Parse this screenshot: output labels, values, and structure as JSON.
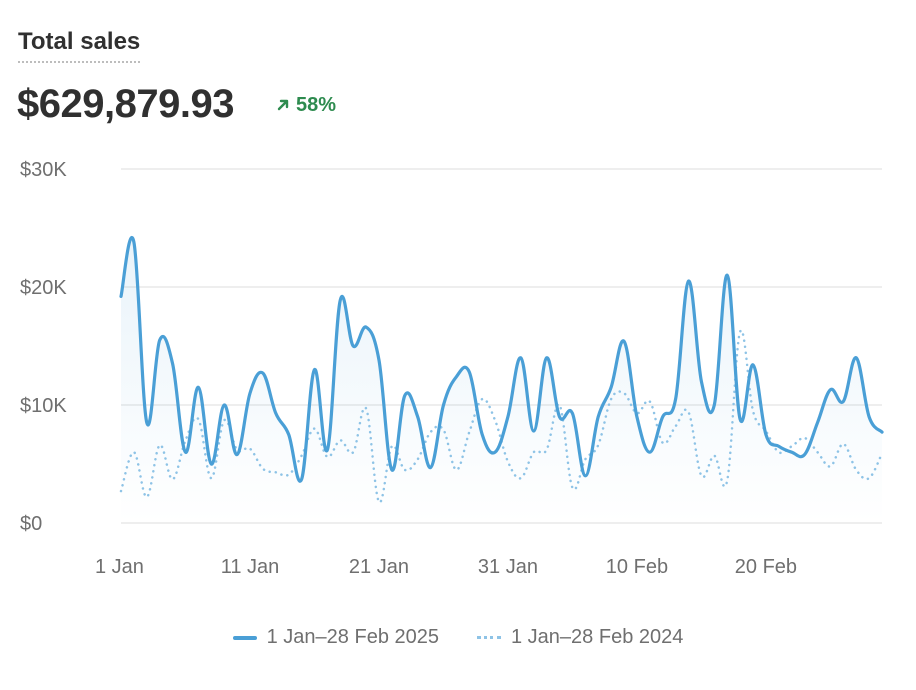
{
  "header": {
    "title": "Total sales",
    "total": "$629,879.93",
    "change": "58%",
    "change_icon": "arrow-up-right-icon"
  },
  "colors": {
    "current": "#4a9fd6",
    "previous": "#8ec3e6",
    "positive": "#2e8b4f",
    "grid": "#e8e8e8"
  },
  "chart_data": {
    "type": "line",
    "title": "Total sales",
    "ylim": [
      0,
      30000
    ],
    "y_ticks": [
      {
        "value": 0,
        "label": "$0"
      },
      {
        "value": 10000,
        "label": "$10K"
      },
      {
        "value": 20000,
        "label": "$20K"
      },
      {
        "value": 30000,
        "label": "$30K"
      }
    ],
    "x_ticks": [
      {
        "day": 1,
        "label": "1 Jan"
      },
      {
        "day": 11,
        "label": "11 Jan"
      },
      {
        "day": 21,
        "label": "21 Jan"
      },
      {
        "day": 31,
        "label": "31 Jan"
      },
      {
        "day": 41,
        "label": "10 Feb"
      },
      {
        "day": 51,
        "label": "20 Feb"
      }
    ],
    "grid": true,
    "legend_position": "bottom",
    "series": [
      {
        "name": "1 Jan–28 Feb 2025",
        "style": "solid",
        "values": [
          19200,
          23800,
          8500,
          15500,
          13500,
          6000,
          11500,
          5000,
          10000,
          5800,
          11000,
          12700,
          9300,
          7500,
          3700,
          13000,
          6200,
          18900,
          15000,
          16600,
          13800,
          4500,
          10800,
          9000,
          4700,
          10000,
          12400,
          12800,
          7500,
          6000,
          9000,
          14000,
          7800,
          14000,
          9000,
          9300,
          4000,
          9000,
          11500,
          15400,
          9000,
          6000,
          9000,
          10500,
          20500,
          12000,
          10000,
          21000,
          8800,
          13400,
          7500,
          6500,
          6000,
          5800,
          8500,
          11300,
          10300,
          14000,
          9000,
          7700
        ]
      },
      {
        "name": "1 Jan–28 Feb 2024",
        "style": "dotted",
        "values": [
          2700,
          6000,
          2200,
          6600,
          3700,
          7000,
          8800,
          3800,
          8700,
          6200,
          6300,
          4600,
          4300,
          4100,
          5700,
          8000,
          5600,
          7000,
          6000,
          9700,
          1800,
          6500,
          4500,
          5400,
          7700,
          7900,
          4500,
          7700,
          10500,
          8700,
          5200,
          3800,
          6000,
          6200,
          10000,
          3000,
          5400,
          6600,
          10500,
          11000,
          9300,
          10300,
          6800,
          8200,
          9400,
          4000,
          5700,
          3600,
          16200,
          9500,
          7800,
          6000,
          6500,
          7200,
          6000,
          4800,
          6700,
          4500,
          3800,
          5900
        ]
      }
    ]
  }
}
